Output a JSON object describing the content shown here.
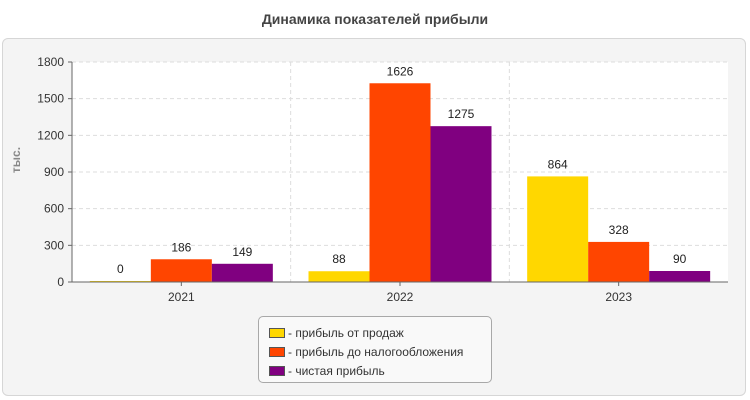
{
  "chart_data": {
    "type": "bar",
    "title": "Динамика показателей прибыли",
    "ylabel": "тыс.",
    "xlabel": "",
    "categories": [
      "2021",
      "2022",
      "2023"
    ],
    "ylim": [
      0,
      1800
    ],
    "yticks": [
      0,
      300,
      600,
      900,
      1200,
      1500,
      1800
    ],
    "grid": true,
    "legend_position": "bottom",
    "series": [
      {
        "name": "- прибыль от продаж",
        "color": "#FFD700",
        "values": [
          0,
          88,
          864
        ]
      },
      {
        "name": "- прибыль до налогообложения",
        "color": "#FF4500",
        "values": [
          186,
          1626,
          328
        ]
      },
      {
        "name": "- чистая прибыль",
        "color": "#800080",
        "values": [
          149,
          1275,
          90
        ]
      }
    ]
  }
}
